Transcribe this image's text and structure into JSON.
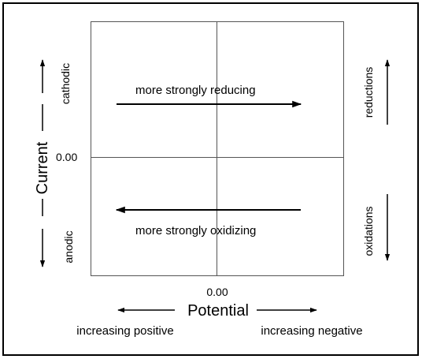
{
  "current_label": "Current",
  "potential_label": "Potential",
  "y_origin_label": "0.00",
  "x_origin_label": "0.00",
  "cathodic_label": "cathodic",
  "anodic_label": "anodic",
  "reductions_label": "reductions",
  "oxidations_label": "oxidations",
  "reducing_label": "more strongly reducing",
  "oxidizing_label": "more strongly oxidizing",
  "positive_label": "increasing positive",
  "negative_label": "increasing negative"
}
